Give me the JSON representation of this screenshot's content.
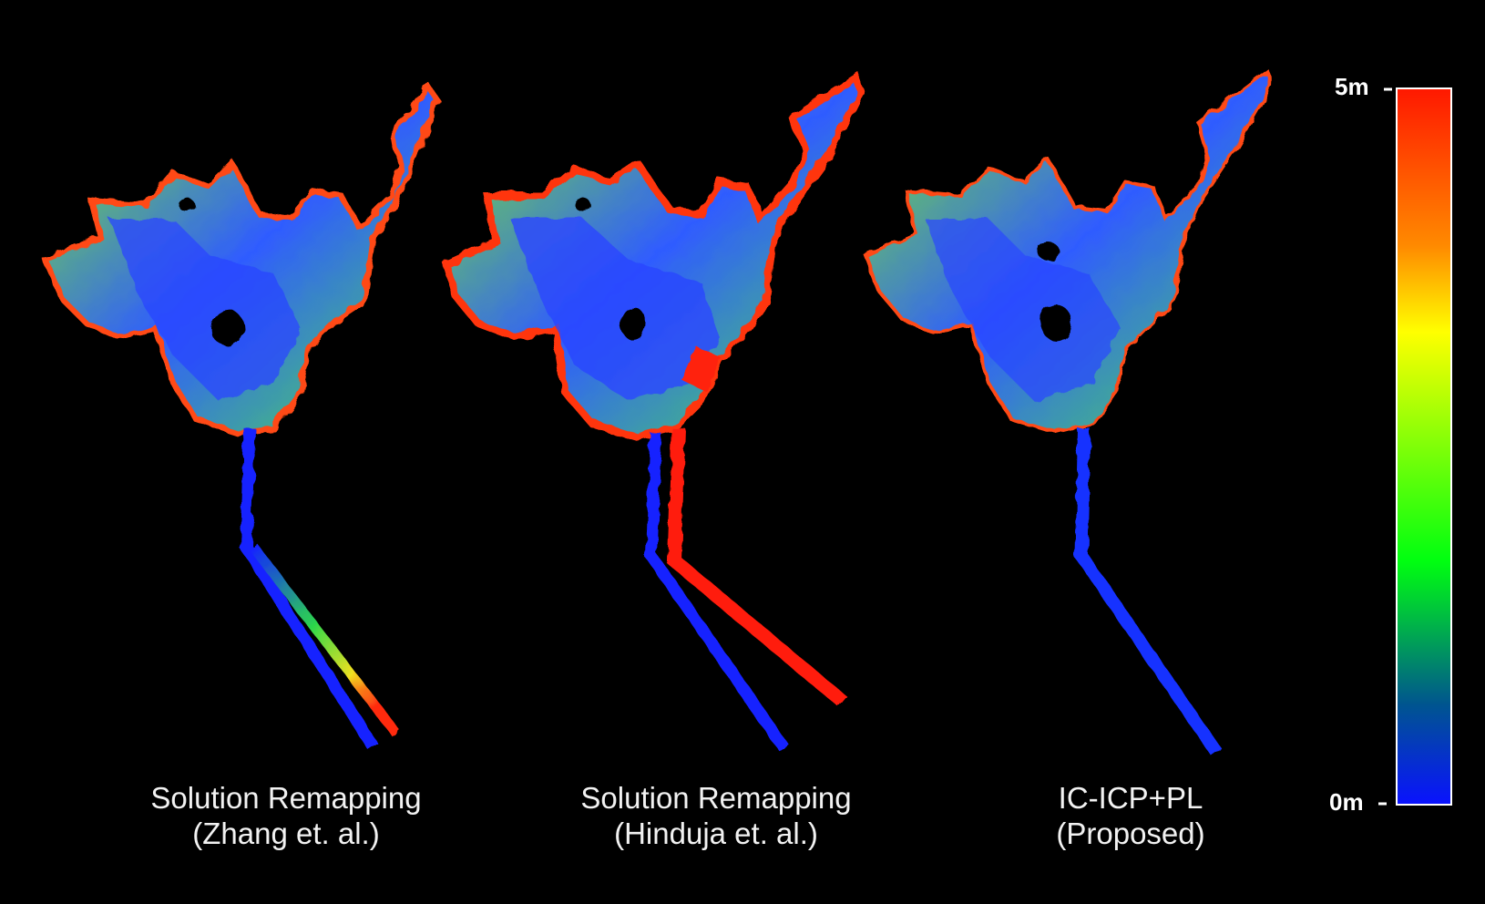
{
  "figure": {
    "maps": [
      {
        "caption_line1": "Solution Remapping",
        "caption_line2": "(Zhang et. al.)",
        "tail_colors": [
          "#1424ff",
          "#3a6cff",
          "#7df01a",
          "#f0e020",
          "#ff2a10"
        ],
        "drift": "moderate"
      },
      {
        "caption_line1": "Solution Remapping",
        "caption_line2": "(Hinduja et. al.)",
        "tail_colors": [
          "#ff1a0a",
          "#ff1a0a",
          "#ff1a0a",
          "#ff1a0a",
          "#ff1a0a"
        ],
        "drift": "large"
      },
      {
        "caption_line1": "IC-ICP+PL",
        "caption_line2": "(Proposed)",
        "tail_colors": [
          "#1430ff",
          "#1430ff",
          "#1430ff",
          "#1430ff",
          "#1430ff"
        ],
        "drift": "none"
      }
    ],
    "colorbar": {
      "max_label": "5m",
      "min_label": "0m",
      "gradient": [
        "#ff1800",
        "#ff8a00",
        "#ffff00",
        "#00ff10",
        "#0a12ff"
      ]
    }
  }
}
